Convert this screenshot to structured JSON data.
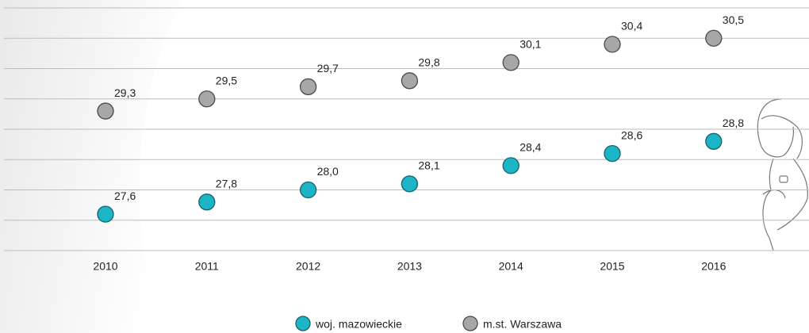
{
  "chart_data": {
    "type": "scatter",
    "categories": [
      "2010",
      "2011",
      "2012",
      "2013",
      "2014",
      "2015",
      "2016"
    ],
    "series": [
      {
        "name": "woj. mazowieckie",
        "color": "#1bb5c6",
        "values": [
          27.6,
          27.8,
          28.0,
          28.1,
          28.4,
          28.6,
          28.8
        ],
        "value_labels": [
          "27,6",
          "27,8",
          "28,0",
          "28,1",
          "28,4",
          "28,6",
          "28,8"
        ]
      },
      {
        "name": "m.st. Warszawa",
        "color": "#a7a7a9",
        "values": [
          29.3,
          29.5,
          29.7,
          29.8,
          30.1,
          30.4,
          30.5
        ],
        "value_labels": [
          "29,3",
          "29,5",
          "29,7",
          "29,8",
          "30,1",
          "30,4",
          "30,5"
        ]
      }
    ],
    "ylim": [
      27,
      31
    ],
    "yticks": [
      27,
      27.5,
      28,
      28.5,
      29,
      29.5,
      30,
      30.5,
      31
    ],
    "grid": true
  }
}
